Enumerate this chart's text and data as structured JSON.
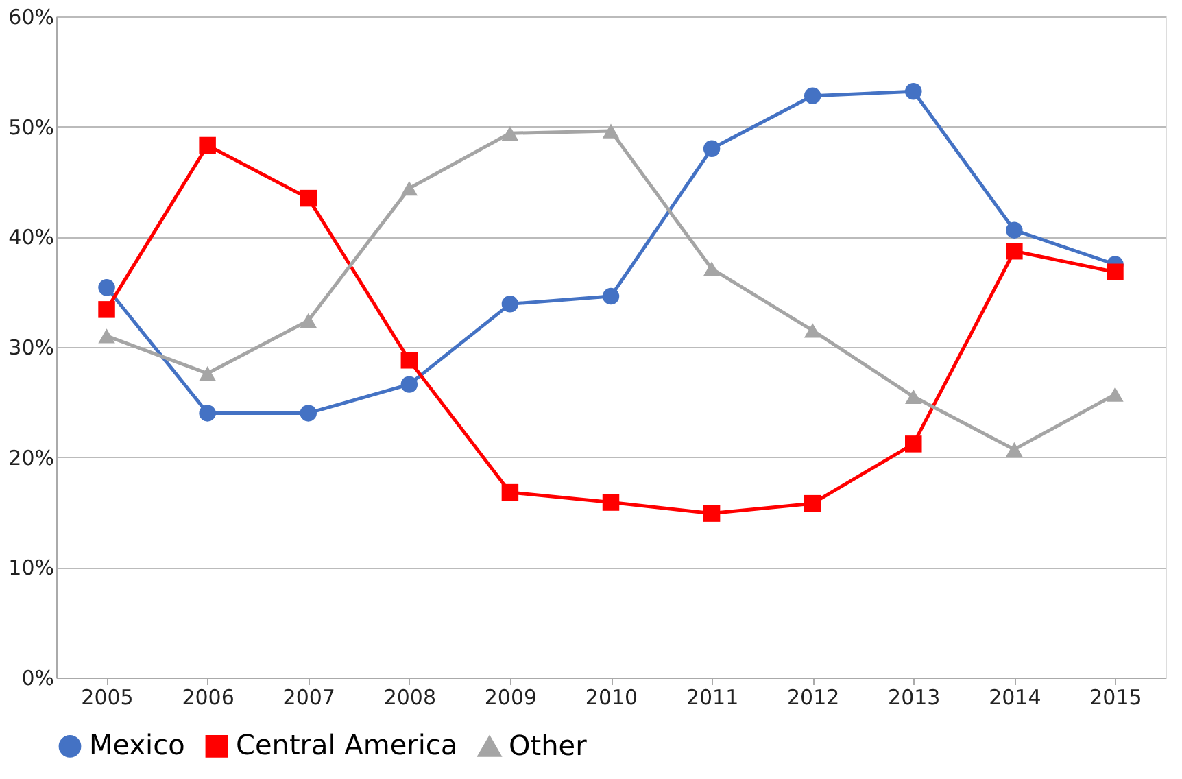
{
  "chart_data": {
    "type": "line",
    "categories": [
      "2005",
      "2006",
      "2007",
      "2008",
      "2009",
      "2010",
      "2011",
      "2012",
      "2013",
      "2014",
      "2015"
    ],
    "series": [
      {
        "name": "Mexico",
        "color": "#4472c4",
        "marker": "circle",
        "values": [
          35.4,
          24.0,
          24.0,
          26.6,
          33.9,
          34.6,
          48.0,
          52.8,
          53.2,
          40.6,
          37.5
        ]
      },
      {
        "name": "Central America",
        "color": "#ff0000",
        "marker": "square",
        "values": [
          33.4,
          48.3,
          43.5,
          28.8,
          16.8,
          15.9,
          14.9,
          15.8,
          21.2,
          38.7,
          36.8
        ]
      },
      {
        "name": "Other",
        "color": "#a5a5a5",
        "marker": "triangle",
        "values": [
          31.0,
          27.6,
          32.4,
          44.4,
          49.4,
          49.6,
          37.1,
          31.5,
          25.5,
          20.7,
          25.7
        ]
      }
    ],
    "ylim": [
      0,
      60
    ],
    "yticks": [
      {
        "value": 0,
        "label": "0%"
      },
      {
        "value": 10,
        "label": "10%"
      },
      {
        "value": 20,
        "label": "20%"
      },
      {
        "value": 30,
        "label": "30%"
      },
      {
        "value": 40,
        "label": "40%"
      },
      {
        "value": 50,
        "label": "50%"
      },
      {
        "value": 60,
        "label": "60%"
      }
    ],
    "grid": "y",
    "legend": "bottom",
    "line_style": "solid"
  }
}
